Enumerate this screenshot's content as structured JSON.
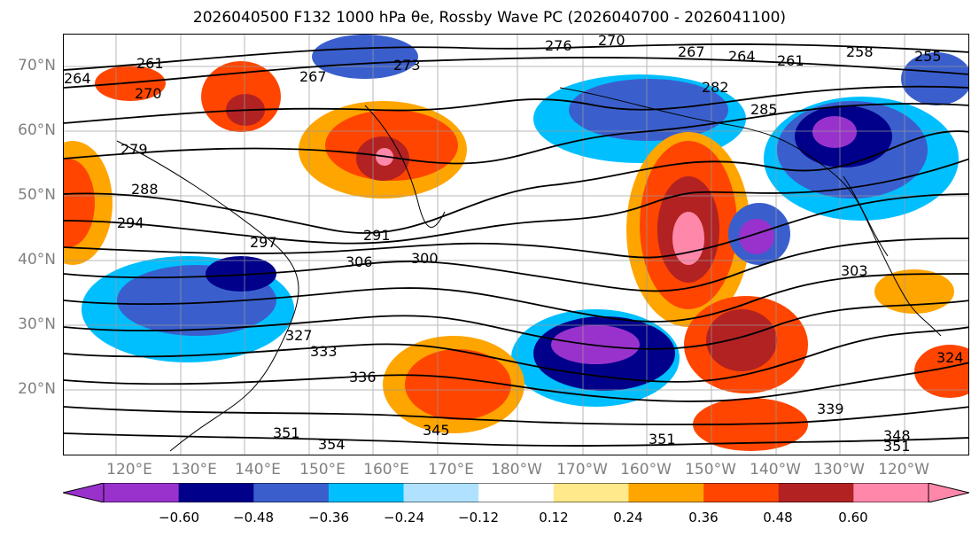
{
  "title": "2026040500 F132 1000 hPa θe, Rossby Wave PC (2026040700 - 2026041100)",
  "lat_labels": [
    "70°N",
    "60°N",
    "50°N",
    "40°N",
    "30°N",
    "20°N"
  ],
  "lon_labels": [
    "120°E",
    "130°E",
    "140°E",
    "150°E",
    "160°E",
    "170°E",
    "180°W",
    "170°W",
    "160°W",
    "150°W",
    "140°W",
    "130°W",
    "120°W"
  ],
  "colorbar": {
    "ticks": [
      "−0.60",
      "−0.48",
      "−0.36",
      "−0.24",
      "−0.12",
      "0.12",
      "0.24",
      "0.36",
      "0.48",
      "0.60"
    ],
    "colors": [
      "#9932cc",
      "#00008b",
      "#3a5fcd",
      "#00bfff",
      "#b0e2ff",
      "#ffffff",
      "#ffe98a",
      "#ffa500",
      "#ff4500",
      "#b22222",
      "#ff88aa",
      "#ff88aa"
    ],
    "under_color": "#9932cc",
    "over_color": "#ff88aa"
  },
  "contour_labels": [
    "264",
    "261",
    "270",
    "267",
    "273",
    "276",
    "270",
    "267",
    "264",
    "261",
    "258",
    "255",
    "279",
    "288",
    "294",
    "297",
    "291",
    "306",
    "300",
    "303",
    "327",
    "333",
    "336",
    "345",
    "351",
    "354",
    "351",
    "339",
    "348",
    "351",
    "324",
    "282",
    "285"
  ]
}
